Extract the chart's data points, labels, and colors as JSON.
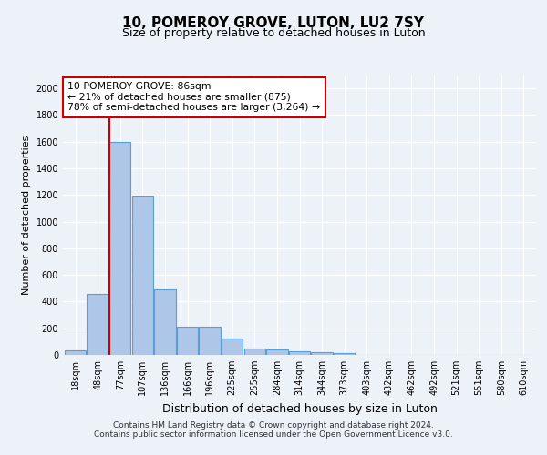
{
  "title": "10, POMEROY GROVE, LUTON, LU2 7SY",
  "subtitle": "Size of property relative to detached houses in Luton",
  "xlabel": "Distribution of detached houses by size in Luton",
  "ylabel": "Number of detached properties",
  "footer_line1": "Contains HM Land Registry data © Crown copyright and database right 2024.",
  "footer_line2": "Contains public sector information licensed under the Open Government Licence v3.0.",
  "categories": [
    "18sqm",
    "48sqm",
    "77sqm",
    "107sqm",
    "136sqm",
    "166sqm",
    "196sqm",
    "225sqm",
    "255sqm",
    "284sqm",
    "314sqm",
    "344sqm",
    "373sqm",
    "403sqm",
    "432sqm",
    "462sqm",
    "492sqm",
    "521sqm",
    "551sqm",
    "580sqm",
    "610sqm"
  ],
  "values": [
    35,
    455,
    1600,
    1195,
    490,
    210,
    210,
    125,
    45,
    38,
    25,
    20,
    12,
    0,
    0,
    0,
    0,
    0,
    0,
    0,
    0
  ],
  "bar_color": "#aec6e8",
  "bar_edge_color": "#5a9fd4",
  "annotation_label": "10 POMEROY GROVE: 86sqm",
  "annotation_line1": "← 21% of detached houses are smaller (875)",
  "annotation_line2": "78% of semi-detached houses are larger (3,264) →",
  "annotation_box_facecolor": "#ffffff",
  "annotation_box_edgecolor": "#cc0000",
  "vline_color": "#cc0000",
  "vline_position": 1.525,
  "ylim": [
    0,
    2100
  ],
  "yticks": [
    0,
    200,
    400,
    600,
    800,
    1000,
    1200,
    1400,
    1600,
    1800,
    2000
  ],
  "background_color": "#edf1f8",
  "axes_background": "#edf1f8",
  "grid_color": "#ffffff",
  "title_fontsize": 11,
  "subtitle_fontsize": 9,
  "ylabel_fontsize": 8,
  "xlabel_fontsize": 9,
  "tick_fontsize": 7,
  "footer_fontsize": 6.5
}
